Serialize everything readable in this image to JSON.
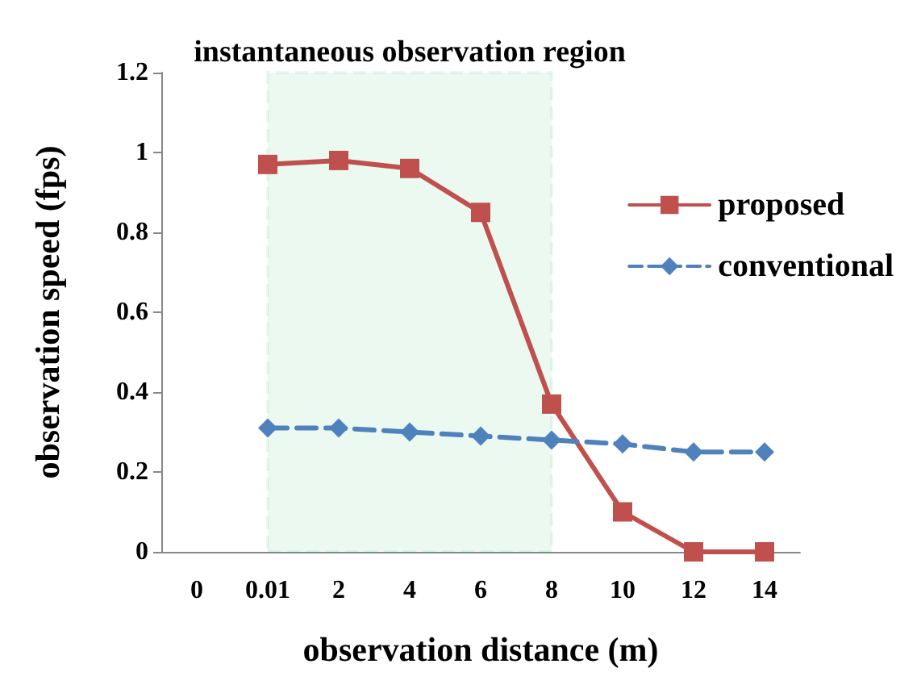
{
  "chart_data": {
    "type": "line",
    "xlabel": "observation distance (m)",
    "ylabel": "observation speed (fps)",
    "categories": [
      "0",
      "0.01",
      "2",
      "4",
      "6",
      "8",
      "10",
      "12",
      "14"
    ],
    "series": [
      {
        "name": "proposed",
        "color": "#c0504d",
        "marker": "square",
        "line_style": "solid",
        "values": [
          null,
          0.97,
          0.98,
          0.96,
          0.85,
          0.37,
          0.1,
          0,
          0
        ]
      },
      {
        "name": "conventional",
        "color": "#4f81bd",
        "marker": "diamond",
        "line_style": "dashed",
        "values": [
          null,
          0.31,
          0.31,
          0.3,
          0.29,
          0.28,
          0.27,
          0.25,
          0.25
        ]
      }
    ],
    "bands": [
      {
        "axis": "x",
        "from": "0.01",
        "to": "8",
        "label": "instantaneous observation region",
        "color": "#00b050"
      }
    ],
    "ylim": [
      0,
      1.2
    ],
    "yticks": [
      0,
      0.2,
      0.4,
      0.6,
      0.8,
      1,
      1.2
    ],
    "grid": false,
    "legend": "right"
  }
}
